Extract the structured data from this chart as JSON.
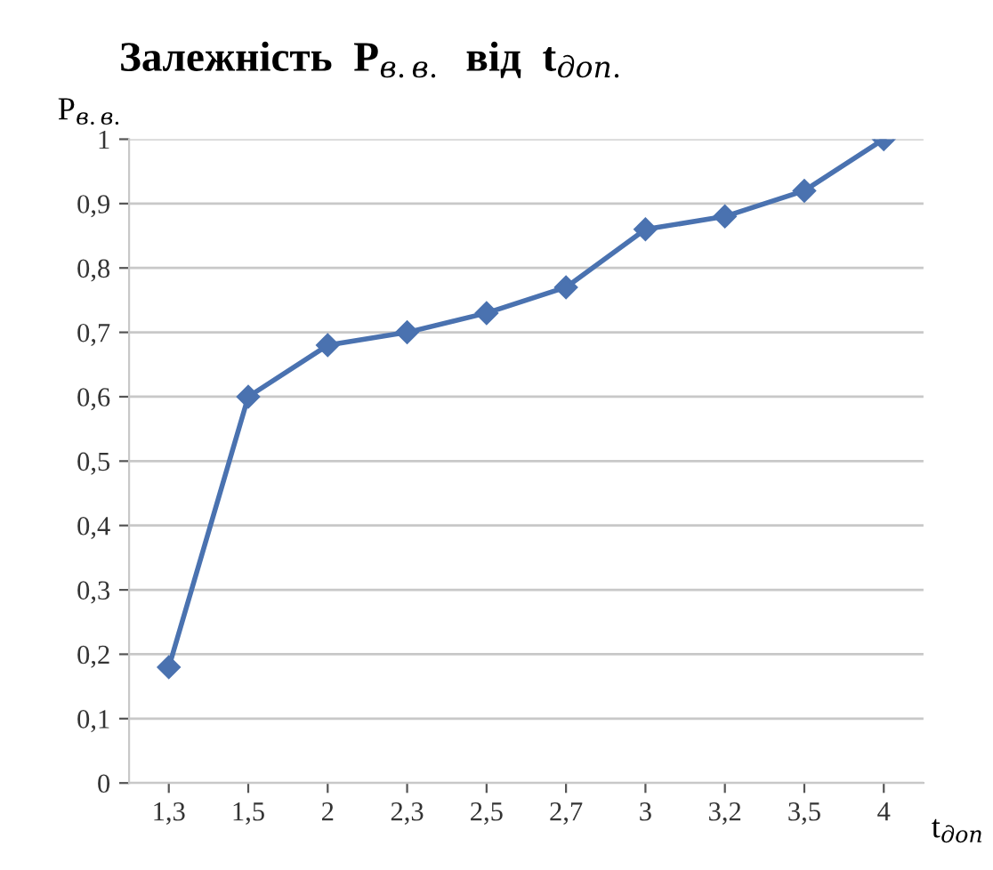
{
  "chart_data": {
    "type": "line",
    "title": "Залежність  P$_{в.в.}$  від  t$_{доп.}$",
    "ylabel": "P$_{в.в.}$",
    "xlabel": "t$_{доп}$",
    "categories": [
      "1,3",
      "1,5",
      "2",
      "2,3",
      "2,5",
      "2,7",
      "3",
      "3,2",
      "3,5",
      "4"
    ],
    "series": [
      {
        "color": "#4a72b0",
        "values": [
          0.18,
          0.6,
          0.68,
          0.7,
          0.73,
          0.77,
          0.86,
          0.88,
          0.92,
          1.0
        ]
      }
    ],
    "ylim": [
      0,
      1
    ],
    "yticks": [
      0,
      {
        "value": 0.1,
        "label": "0,1"
      },
      {
        "value": 0.2,
        "label": "0,2"
      },
      {
        "value": 0.3,
        "label": "0,3"
      },
      {
        "value": 0.4,
        "label": "0,4"
      },
      {
        "value": 0.5,
        "label": "0,5"
      },
      {
        "value": 0.6,
        "label": "0,6"
      },
      {
        "value": 0.7,
        "label": "0,7"
      },
      {
        "value": 0.8,
        "label": "0,8"
      },
      {
        "value": 0.9,
        "label": "0,9"
      },
      1
    ],
    "grid": "y",
    "marker": "diamond",
    "line_style": "solid"
  }
}
